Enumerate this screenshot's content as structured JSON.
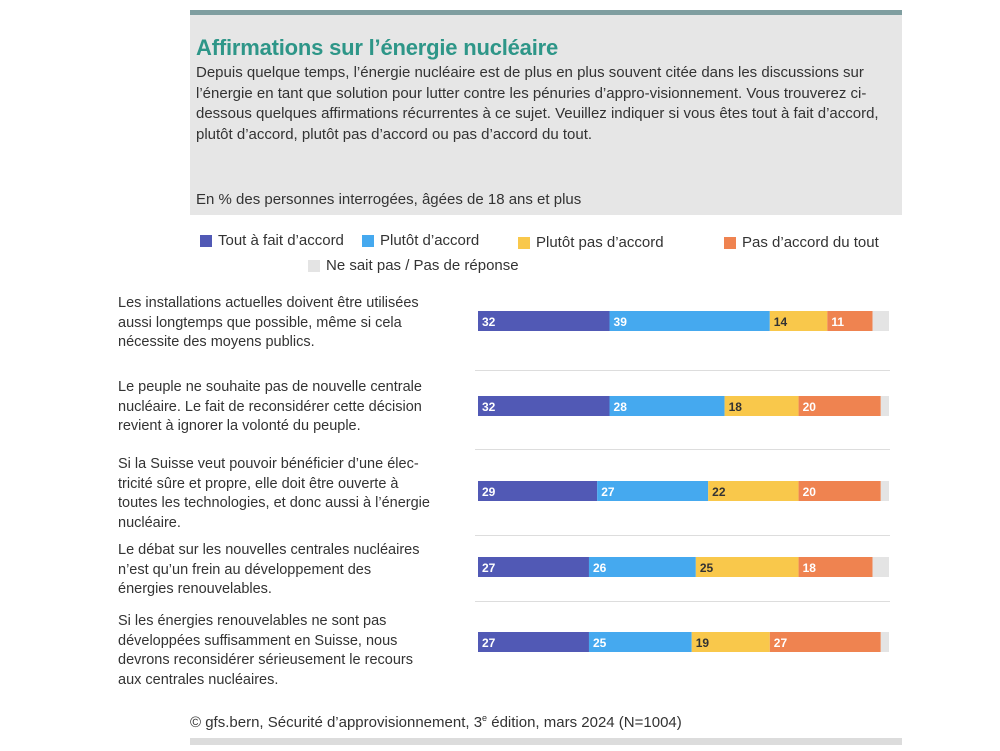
{
  "header": {
    "title": "Affirmations sur l’énergie nucléaire",
    "intro": "Depuis quelque temps, l’énergie nucléaire est de plus en plus souvent citée dans les discussions sur l’énergie en tant que solution pour lutter contre les pénuries d’appro-visionnement. Vous trouverez ci-dessous quelques affirmations récurrentes à ce sujet. Veuillez indiquer si vous êtes tout à fait d’accord, plutôt d’accord, plutôt pas d’accord ou pas d’accord du tout.",
    "unit": "En % des personnes interrogées, âgées de 18 ans et plus"
  },
  "footer": {
    "source_before": "© gfs.bern, Sécurité d’approvisionnement, 3",
    "source_sup": "e",
    "source_after": " édition, mars 2024 (N=1004)"
  },
  "colors": {
    "tout_a_fait": "#5159b5",
    "plutot_accord": "#45a9ef",
    "plutot_pas": "#f9c84b",
    "pas_du_tout": "#ef8350",
    "ne_sait_pas": "#e4e4e4"
  },
  "chart_data": {
    "type": "bar",
    "orientation": "horizontal",
    "stacked": true,
    "xlim": [
      0,
      100
    ],
    "legend_position": "top",
    "series": [
      {
        "name": "Tout à fait d’accord",
        "values": [
          32,
          32,
          29,
          27,
          27
        ]
      },
      {
        "name": "Plutôt d’accord",
        "values": [
          39,
          28,
          27,
          26,
          25
        ]
      },
      {
        "name": "Plutôt pas d’accord",
        "values": [
          14,
          18,
          22,
          25,
          19
        ]
      },
      {
        "name": "Pas d’accord du tout",
        "values": [
          11,
          20,
          20,
          18,
          27
        ]
      },
      {
        "name": "Ne sait pas / Pas de réponse",
        "values": [
          4,
          2,
          2,
          4,
          2
        ]
      }
    ],
    "categories": [
      "Les installations actuelles doivent être utilisées aussi longtemps que possible, même si cela nécessite des moyens publics.",
      "Le peuple ne souhaite pas de nouvelle centrale nucléaire. Le fait de reconsidérer cette décision revient à ignorer la volonté du peuple.",
      "Si la Suisse veut pouvoir bénéficier d’une élec-tricité sûre et propre, elle doit être ouverte à toutes les technologies, et donc aussi à l’énergie nucléaire.",
      "Le débat sur les nouvelles centrales nucléaires n’est qu’un frein au développement des énergies renouvelables.",
      "Si les énergies renouvelables ne sont pas développées suffisamment en Suisse, nous devrons reconsidérer sérieusement le recours aux centrales nucléaires."
    ],
    "category_lines": [
      [
        "Les installations actuelles doivent être utilisées",
        "aussi longtemps que possible, même si cela",
        "nécessite des moyens publics."
      ],
      [
        "Le peuple ne souhaite pas de nouvelle centrale",
        "nucléaire. Le fait de reconsidérer cette décision",
        "revient à ignorer la volonté du peuple."
      ],
      [
        "Si la Suisse veut pouvoir bénéficier d’une élec-",
        "tricité sûre et propre, elle doit être ouverte à",
        "toutes les technologies, et donc aussi à l’énergie",
        "nucléaire."
      ],
      [
        "Le débat sur les nouvelles centrales nucléaires",
        "n’est qu’un frein au développement des",
        "énergies renouvelables."
      ],
      [
        "Si les énergies renouvelables ne sont pas",
        "développées suffisamment en Suisse, nous",
        "devrons reconsidérer sérieusement le recours",
        "aux centrales nucléaires."
      ]
    ],
    "data_labels": [
      [
        "32",
        "39",
        "14",
        "11",
        ""
      ],
      [
        "32",
        "28",
        "18",
        "20",
        ""
      ],
      [
        "29",
        "27",
        "22",
        "20",
        ""
      ],
      [
        "27",
        "26",
        "25",
        "18",
        ""
      ],
      [
        "27",
        "25",
        "19",
        "27",
        ""
      ]
    ]
  }
}
